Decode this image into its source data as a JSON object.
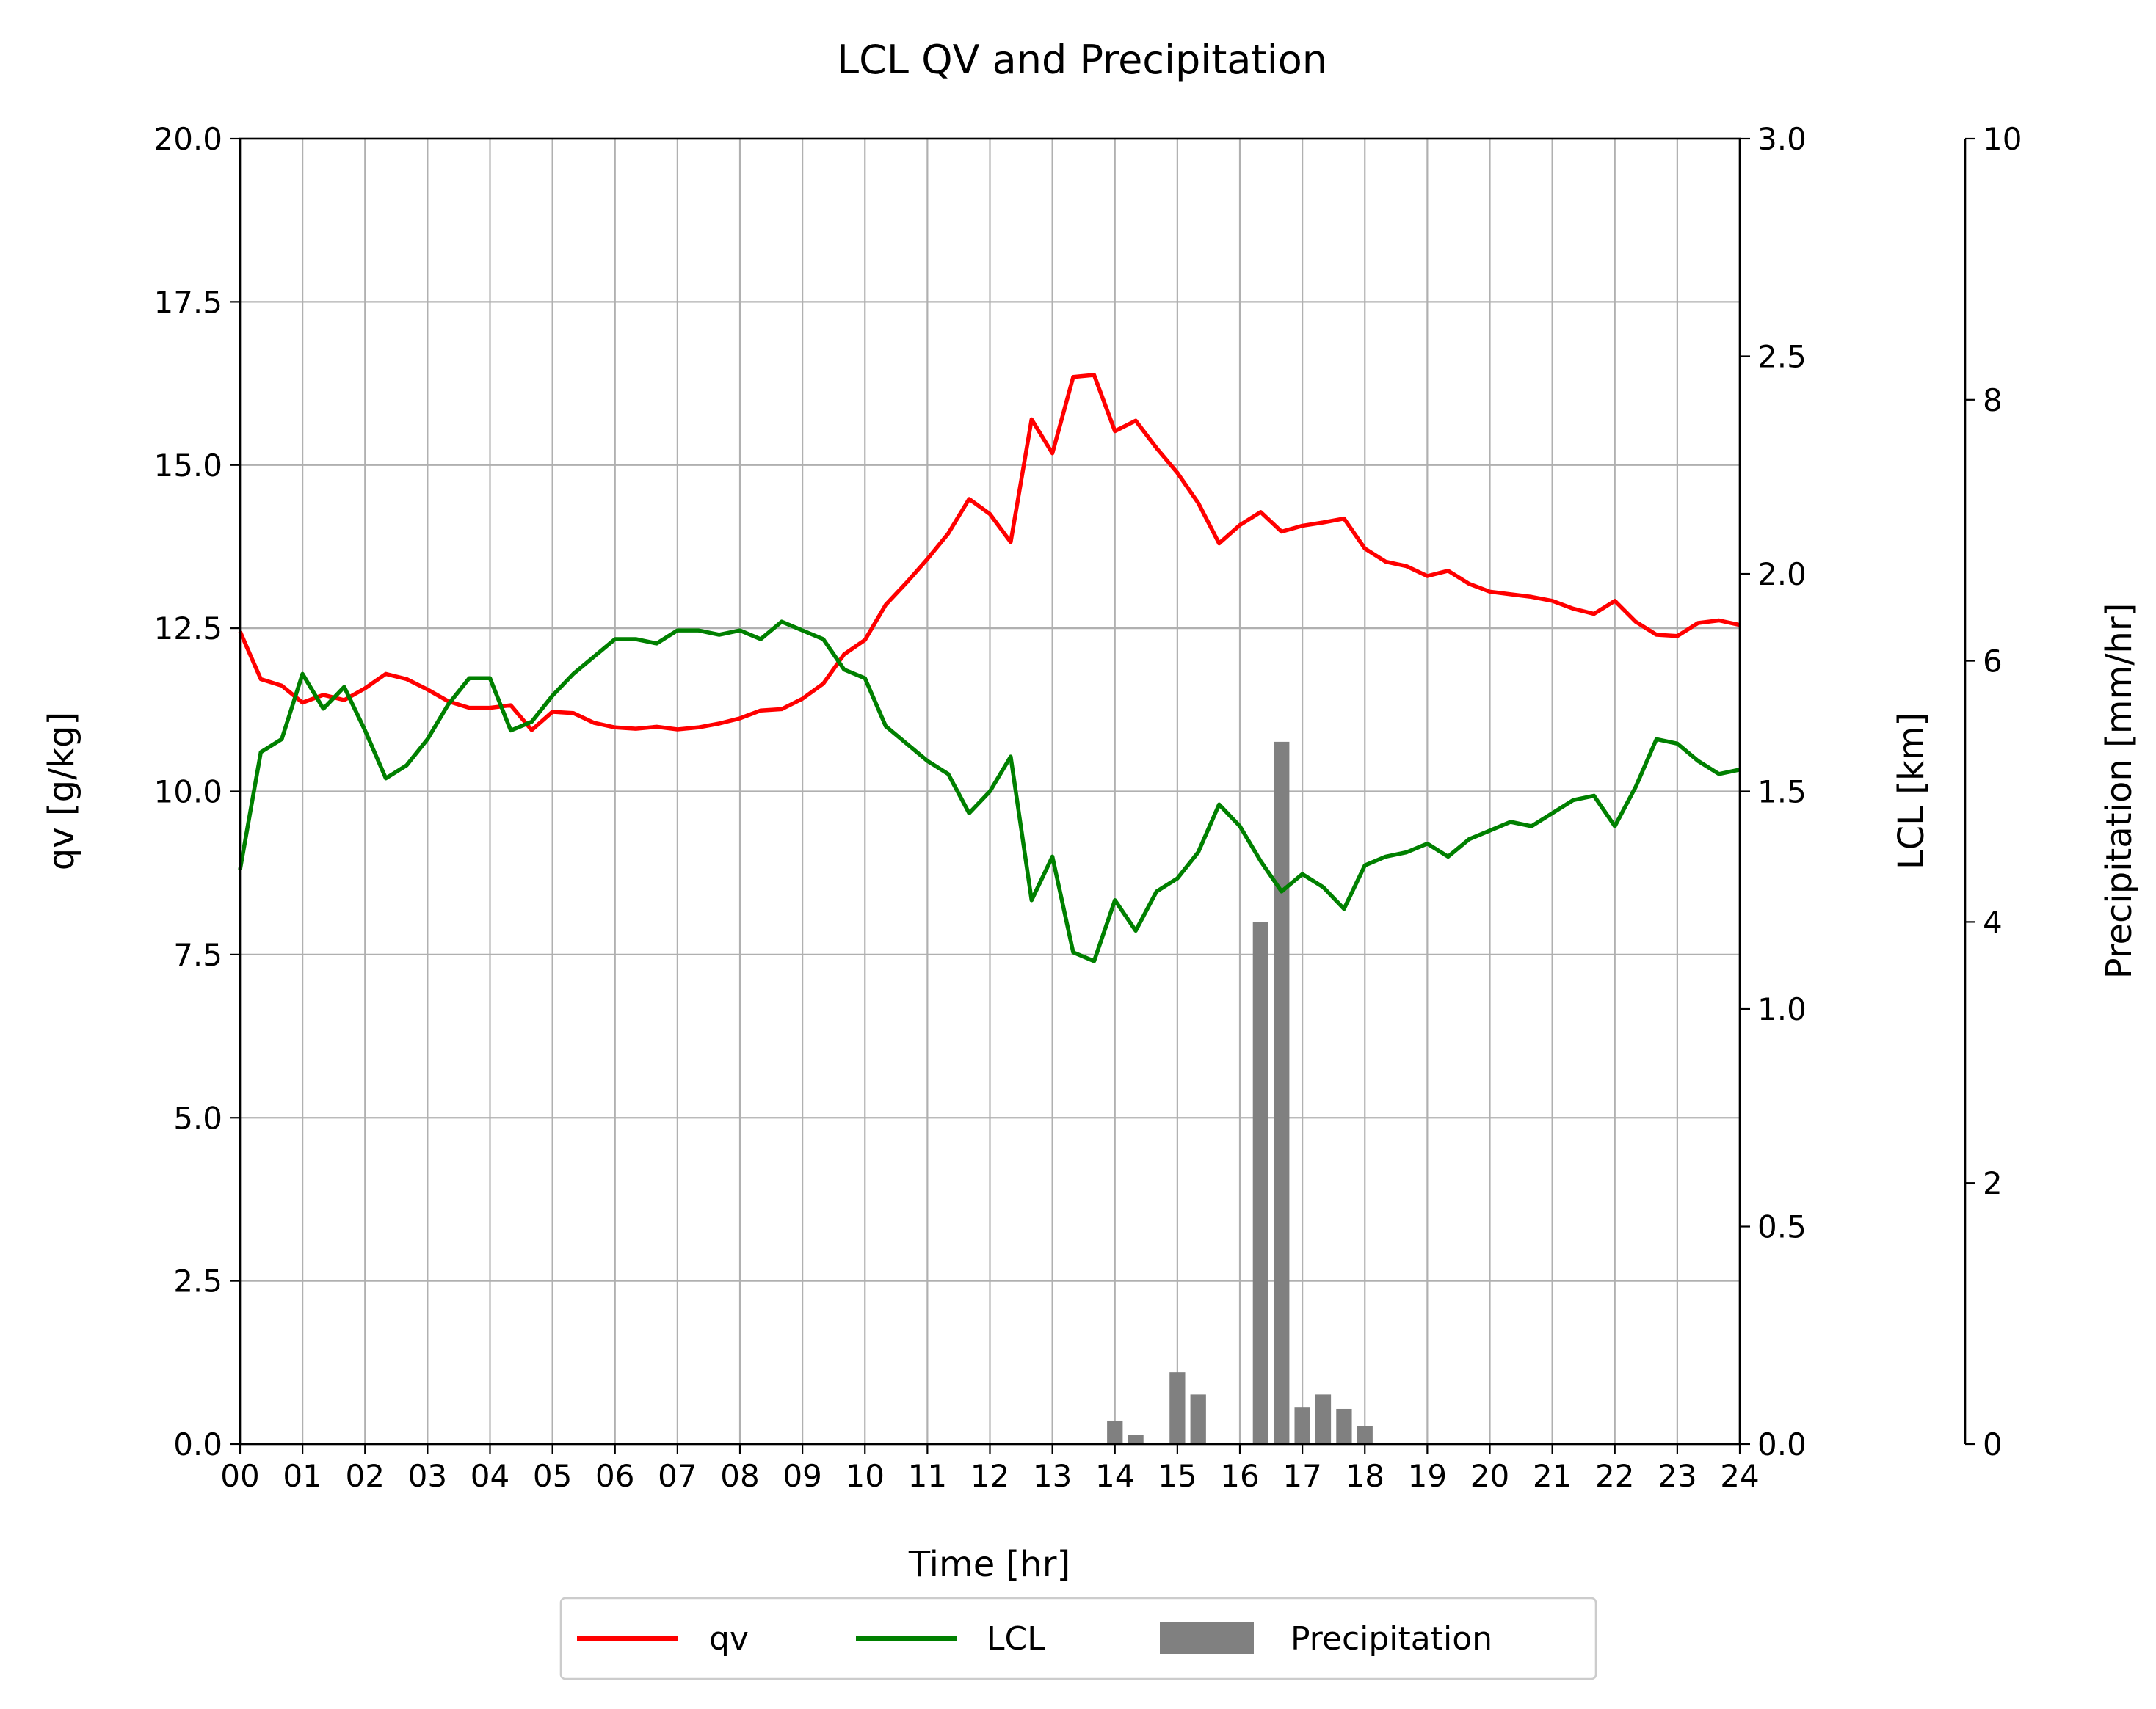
{
  "chart_data": {
    "type": "line",
    "title": "LCL QV and Precipitation",
    "xlabel": "Time [hr]",
    "ylabel_left": "qv [g/kg]",
    "ylabel_right": "LCL [km]",
    "ylabel_far_right": "Precipitation [mm/hr]",
    "xlim": [
      0,
      24
    ],
    "ylim_left": [
      0,
      20
    ],
    "ylim_right": [
      0,
      3
    ],
    "ylim_far_right": [
      0,
      10
    ],
    "x_ticks": [
      "00",
      "01",
      "02",
      "03",
      "04",
      "05",
      "06",
      "07",
      "08",
      "09",
      "10",
      "11",
      "12",
      "13",
      "14",
      "15",
      "16",
      "17",
      "18",
      "19",
      "20",
      "21",
      "22",
      "23",
      "24"
    ],
    "y_ticks_left": [
      "0.0",
      "2.5",
      "5.0",
      "7.5",
      "10.0",
      "12.5",
      "15.0",
      "17.5",
      "20.0"
    ],
    "y_ticks_right": [
      "0.0",
      "0.5",
      "1.0",
      "1.5",
      "2.0",
      "2.5",
      "3.0"
    ],
    "y_ticks_far_right": [
      "0",
      "2",
      "4",
      "6",
      "8",
      "10"
    ],
    "grid": true,
    "legend_position": "bottom-center",
    "colors": {
      "qv": "#ff0000",
      "LCL": "#008000",
      "Precipitation": "#808080"
    },
    "x": [
      0,
      0.333,
      0.667,
      1,
      1.333,
      1.667,
      2,
      2.333,
      2.667,
      3,
      3.333,
      3.667,
      4,
      4.333,
      4.667,
      5,
      5.333,
      5.667,
      6,
      6.333,
      6.667,
      7,
      7.333,
      7.667,
      8,
      8.333,
      8.667,
      9,
      9.333,
      9.667,
      10,
      10.333,
      10.667,
      11,
      11.333,
      11.667,
      12,
      12.333,
      12.667,
      13,
      13.333,
      13.667,
      14,
      14.333,
      14.667,
      15,
      15.333,
      15.667,
      16,
      16.333,
      16.667,
      17,
      17.333,
      17.667,
      18,
      18.333,
      18.667,
      19,
      19.333,
      19.667,
      20,
      20.333,
      20.667,
      21,
      21.333,
      21.667,
      22,
      22.333,
      22.667,
      23,
      23.333,
      23.667,
      24
    ],
    "series": [
      {
        "name": "qv",
        "axis": "left",
        "values": [
          12.45,
          11.72,
          11.62,
          11.36,
          11.48,
          11.4,
          11.58,
          11.8,
          11.72,
          11.56,
          11.38,
          11.28,
          11.28,
          11.32,
          10.94,
          11.22,
          11.2,
          11.05,
          10.98,
          10.96,
          10.99,
          10.95,
          10.98,
          11.04,
          11.12,
          11.24,
          11.26,
          11.42,
          11.65,
          12.1,
          12.32,
          12.86,
          13.2,
          13.56,
          13.95,
          14.48,
          14.25,
          13.82,
          15.7,
          15.18,
          16.35,
          16.38,
          15.52,
          15.68,
          15.26,
          14.88,
          14.42,
          13.8,
          14.08,
          14.28,
          13.98,
          14.07,
          14.12,
          14.18,
          13.72,
          13.52,
          13.45,
          13.3,
          13.38,
          13.18,
          13.06,
          13.02,
          12.98,
          12.92,
          12.8,
          12.72,
          12.92,
          12.6,
          12.4,
          12.38,
          12.58,
          12.62,
          12.55
        ]
      },
      {
        "name": "LCL",
        "axis": "right",
        "values": [
          1.32,
          1.59,
          1.62,
          1.77,
          1.69,
          1.74,
          1.64,
          1.53,
          1.56,
          1.62,
          1.7,
          1.76,
          1.76,
          1.64,
          1.66,
          1.72,
          1.77,
          1.81,
          1.85,
          1.85,
          1.84,
          1.87,
          1.87,
          1.86,
          1.87,
          1.85,
          1.89,
          1.87,
          1.85,
          1.78,
          1.76,
          1.65,
          1.61,
          1.57,
          1.54,
          1.45,
          1.5,
          1.58,
          1.25,
          1.35,
          1.13,
          1.11,
          1.25,
          1.18,
          1.27,
          1.3,
          1.36,
          1.47,
          1.42,
          1.34,
          1.27,
          1.31,
          1.28,
          1.23,
          1.33,
          1.35,
          1.36,
          1.38,
          1.35,
          1.39,
          1.41,
          1.43,
          1.42,
          1.45,
          1.48,
          1.49,
          1.42,
          1.51,
          1.62,
          1.61,
          1.57,
          1.54,
          1.55
        ]
      }
    ],
    "precipitation": {
      "name": "Precipitation",
      "axis": "far_right",
      "x": [
        14,
        14.333,
        15,
        15.333,
        16.333,
        16.667,
        17,
        17.333,
        17.667,
        18
      ],
      "values": [
        0.18,
        0.07,
        0.55,
        0.38,
        4.0,
        5.38,
        0.28,
        0.38,
        0.27,
        0.14
      ]
    },
    "legend": [
      "qv",
      "LCL",
      "Precipitation"
    ]
  }
}
